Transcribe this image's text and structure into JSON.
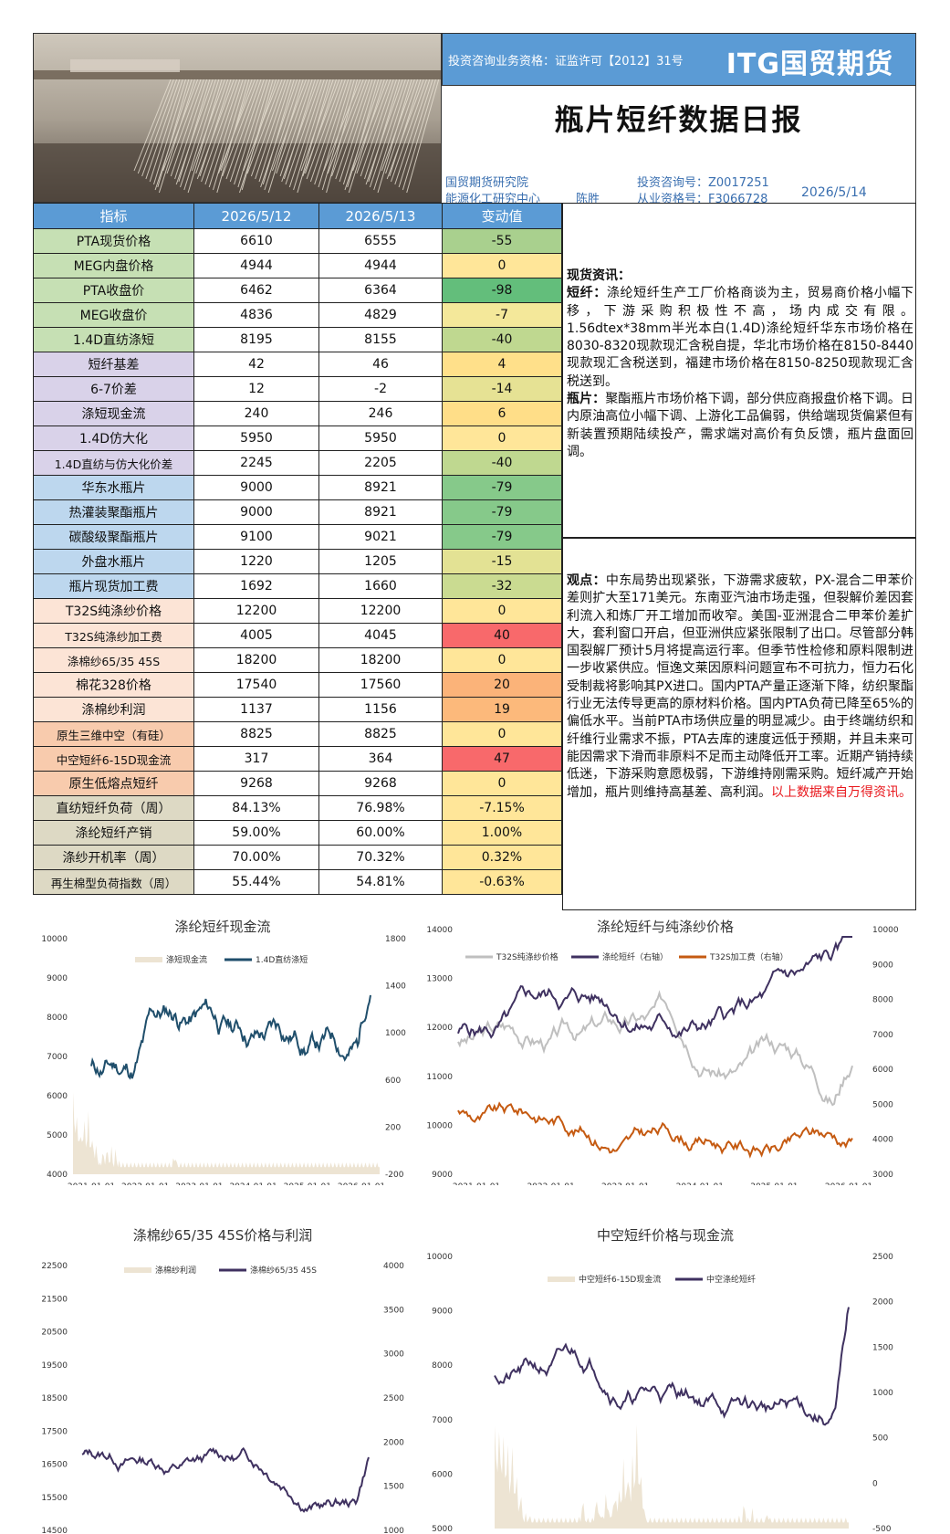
{
  "header": {
    "qualification": "投资咨询业务资格：证监许可【2012】31号",
    "logo": "ITG国贸期货",
    "title": "瓶片短纤数据日报",
    "institute": "国贸期货研究院",
    "center": "能源化工研究中心",
    "analyst": "陈胜",
    "consult_no": "投资咨询号：Z0017251",
    "license_no": "从业资格号：F3066728",
    "date": "2026/5/14"
  },
  "table": {
    "headers": [
      "指标",
      "2026/5/12",
      "2026/5/13",
      "变动值"
    ],
    "rows": [
      {
        "name": "PTA现货价格",
        "d1": "6610",
        "d2": "6555",
        "chg": "-55",
        "group": "green",
        "chg_color": "#a9d08e"
      },
      {
        "name": "MEG内盘价格",
        "d1": "4944",
        "d2": "4944",
        "chg": "0",
        "group": "green",
        "chg_color": "#ffe699"
      },
      {
        "name": "PTA收盘价",
        "d1": "6462",
        "d2": "6364",
        "chg": "-98",
        "group": "green",
        "chg_color": "#63be7b"
      },
      {
        "name": "MEG收盘价",
        "d1": "4836",
        "d2": "4829",
        "chg": "-7",
        "group": "green",
        "chg_color": "#f4e89a"
      },
      {
        "name": "1.4D直纺涤短",
        "d1": "8195",
        "d2": "8155",
        "chg": "-40",
        "group": "green",
        "chg_color": "#bfd890"
      },
      {
        "name": "短纤基差",
        "d1": "42",
        "d2": "46",
        "chg": "4",
        "group": "purple",
        "chg_color": "#ffe08a"
      },
      {
        "name": "6-7价差",
        "d1": "12",
        "d2": "-2",
        "chg": "-14",
        "group": "purple",
        "chg_color": "#e6e294"
      },
      {
        "name": "涤短现金流",
        "d1": "240",
        "d2": "246",
        "chg": "6",
        "group": "purple",
        "chg_color": "#ffde88"
      },
      {
        "name": "1.4D仿大化",
        "d1": "5950",
        "d2": "5950",
        "chg": "0",
        "group": "purple",
        "chg_color": "#ffe699"
      },
      {
        "name": "1.4D直纺与仿大化价差",
        "d1": "2245",
        "d2": "2205",
        "chg": "-40",
        "group": "purple",
        "chg_color": "#bfd890"
      },
      {
        "name": "华东水瓶片",
        "d1": "9000",
        "d2": "8921",
        "chg": "-79",
        "group": "blue",
        "chg_color": "#86c98a"
      },
      {
        "name": "热灌装聚酯瓶片",
        "d1": "9000",
        "d2": "8921",
        "chg": "-79",
        "group": "blue",
        "chg_color": "#86c98a"
      },
      {
        "name": "碳酸级聚酯瓶片",
        "d1": "9100",
        "d2": "9021",
        "chg": "-79",
        "group": "blue",
        "chg_color": "#86c98a"
      },
      {
        "name": "外盘水瓶片",
        "d1": "1220",
        "d2": "1205",
        "chg": "-15",
        "group": "blue",
        "chg_color": "#e3e294"
      },
      {
        "name": "瓶片现货加工费",
        "d1": "1692",
        "d2": "1660",
        "chg": "-32",
        "group": "blue",
        "chg_color": "#cadb91"
      },
      {
        "name": "T32S纯涤纱价格",
        "d1": "12200",
        "d2": "12200",
        "chg": "0",
        "group": "orange",
        "chg_color": "#ffe699"
      },
      {
        "name": "T32S纯涤纱加工费",
        "d1": "4005",
        "d2": "4045",
        "chg": "40",
        "group": "orange",
        "chg_color": "#f8696b"
      },
      {
        "name": "涤棉纱65/35 45S",
        "d1": "18200",
        "d2": "18200",
        "chg": "0",
        "group": "orange",
        "chg_color": "#ffe699"
      },
      {
        "name": "棉花328价格",
        "d1": "17540",
        "d2": "17560",
        "chg": "20",
        "group": "orange",
        "chg_color": "#fbb379"
      },
      {
        "name": "涤棉纱利润",
        "d1": "1137",
        "d2": "1156",
        "chg": "19",
        "group": "orange",
        "chg_color": "#fcb97b"
      },
      {
        "name": "原生三维中空（有硅）",
        "d1": "8825",
        "d2": "8825",
        "chg": "0",
        "group": "pink",
        "chg_color": "#ffe699"
      },
      {
        "name": "中空短纤6-15D现金流",
        "d1": "317",
        "d2": "364",
        "chg": "47",
        "group": "pink",
        "chg_color": "#f8696b"
      },
      {
        "name": "原生低熔点短纤",
        "d1": "9268",
        "d2": "9268",
        "chg": "0",
        "group": "pink",
        "chg_color": "#ffe699"
      },
      {
        "name": "直纺短纤负荷（周）",
        "d1": "84.13%",
        "d2": "76.98%",
        "chg": "-7.15%",
        "group": "tan",
        "chg_color": "#ffe699"
      },
      {
        "name": "涤纶短纤产销",
        "d1": "59.00%",
        "d2": "60.00%",
        "chg": "1.00%",
        "group": "tan",
        "chg_color": "#ffe699"
      },
      {
        "name": "涤纱开机率（周）",
        "d1": "70.00%",
        "d2": "70.32%",
        "chg": "0.32%",
        "group": "tan",
        "chg_color": "#ffe699"
      },
      {
        "name": "再生棉型负荷指数（周）",
        "d1": "55.44%",
        "d2": "54.81%",
        "chg": "-0.63%",
        "group": "tan",
        "chg_color": "#ffe699"
      }
    ]
  },
  "group_colors": {
    "green": "#c6e0b4",
    "purple": "#d9d2e9",
    "blue": "#bdd7ee",
    "orange": "#fce4d6",
    "pink": "#f8cbad",
    "tan": "#ddd9c4"
  },
  "news": {
    "heading": "现货资讯：",
    "fiber_label": "短纤：",
    "fiber_text": "涤纶短纤生产工厂价格商谈为主，贸易商价格小幅下移，下游采购积极性不高，场内成交有限。1.56dtex*38mm半光本白(1.4D)涤纶短纤华东市场价格在8030-8320现款现汇含税自提，华北市场价格在8150-8440现款现汇含税送到，福建市场价格在8150-8250现款现汇含税送到。",
    "chip_label": "瓶片：",
    "chip_text": "聚酯瓶片市场价格下调，部分供应商报盘价格下调。日内原油高位小幅下调、上游化工品偏弱，供给端现货偏紧但有新装置预期陆续投产，需求端对高价有负反馈，瓶片盘面回调。"
  },
  "view": {
    "label": "观点：",
    "text": "中东局势出现紧张，下游需求疲软，PX-混合二甲苯价差则扩大至171美元。东南亚汽油市场走强，但裂解价差因套利流入和炼厂开工增加而收窄。美国-亚洲混合二甲苯价差扩大，套利窗口开启，但亚洲供应紧张限制了出口。尽管部分韩国裂解厂预计5月将提高运行率。但季节性检修和原料限制进一步收紧供应。恒逸文莱因原料问题宣布不可抗力，恒力石化受制裁将影响其PX进口。国内PTA产量正逐渐下降，纺织聚酯行业无法传导更高的原材料价格。国内PTA负荷已降至65%的偏低水平。当前PTA市场供应量的明显减少。由于终端纺织和纤维行业需求不振，PTA去库的速度远低于预期，并且未来可能因需求下滑而非原料不足而主动降低开工率。近期产销持续低迷，下游采购意愿极弱，下游维持刚需采购。短纤减产开始增加，瓶片则维持高基差、高利润。",
    "source": "以上数据来自万得资讯。"
  },
  "charts": [
    {
      "title": "涤纶短纤现金流",
      "legend": [
        "涤短现金流",
        "1.4D直纺涤短"
      ],
      "left_ticks": [
        "10000",
        "9000",
        "8000",
        "7000",
        "6000",
        "5000",
        "4000"
      ],
      "right_ticks": [
        "1800",
        "1400",
        "1000",
        "600",
        "200",
        "-200"
      ],
      "x_ticks": [
        "2021-01-01",
        "2022-01-01",
        "2023-01-01",
        "2024-01-01",
        "2025-01-01",
        "2026-01-01"
      ],
      "line_color": "#1f4e6b",
      "area_color": "#ede4d3"
    },
    {
      "title": "涤纶短纤与纯涤纱价格",
      "legend": [
        "T32S纯涤纱价格",
        "涤纶短纤（右轴）",
        "T32S加工费（右轴）"
      ],
      "left_ticks": [
        "14000",
        "13000",
        "12000",
        "11000",
        "10000",
        "9000"
      ],
      "right_ticks": [
        "10000",
        "9000",
        "8000",
        "7000",
        "6000",
        "5000",
        "4000",
        "3000"
      ],
      "x_ticks": [
        "2021-01-01",
        "2022-01-01",
        "2023-01-01",
        "2024-01-01",
        "2025-01-01",
        "2026-01-01"
      ],
      "colors": [
        "#bfbfbf",
        "#3f3160",
        "#c55a11"
      ]
    },
    {
      "title": "涤棉纱65/35 45S价格与利润",
      "legend": [
        "涤棉纱利润",
        "涤棉纱65/35 45S"
      ],
      "left_ticks": [
        "22500",
        "21500",
        "20500",
        "19500",
        "18500",
        "17500",
        "16500",
        "15500",
        "14500"
      ],
      "right_ticks": [
        "4000",
        "3500",
        "3000",
        "2500",
        "2000",
        "1500",
        "1000"
      ],
      "line_color": "#3f3160",
      "area_color": "#ede4d3"
    },
    {
      "title": "中空短纤价格与现金流",
      "legend": [
        "中空短纤6-15D现金流",
        "中空涤纶短纤"
      ],
      "left_ticks": [
        "10000",
        "9000",
        "8000",
        "7000",
        "6000",
        "5000"
      ],
      "right_ticks": [
        "2500",
        "2000",
        "1500",
        "1000",
        "500",
        "0",
        "-500"
      ],
      "line_color": "#3f3160",
      "area_color": "#ede4d3"
    }
  ]
}
